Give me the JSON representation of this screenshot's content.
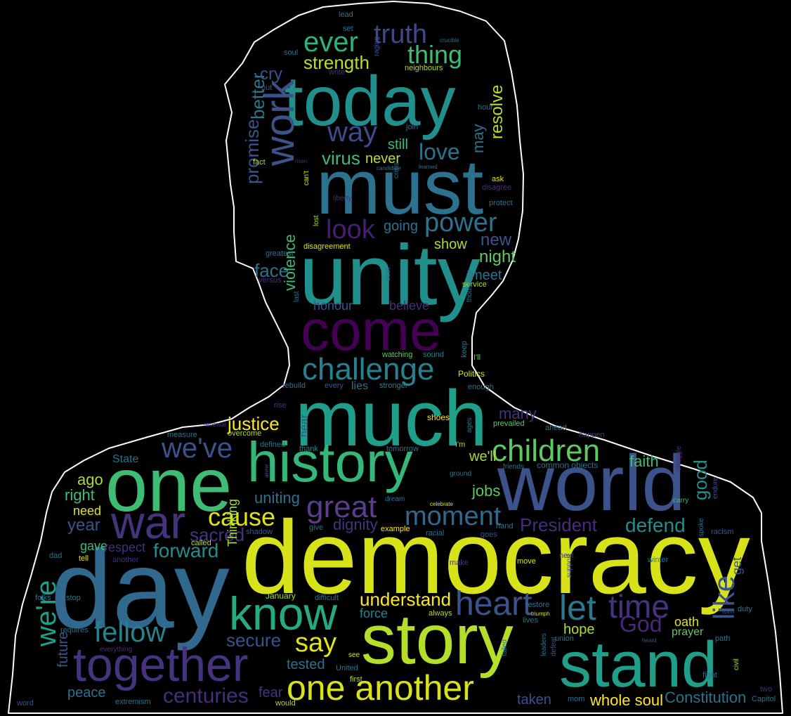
{
  "colors": {
    "background": "#000000",
    "outline": "#ffffff",
    "palette": [
      "#440154",
      "#472c7a",
      "#3b518b",
      "#2c718e",
      "#21908d",
      "#27ad81",
      "#5cc863",
      "#aadc32",
      "#fde725"
    ]
  },
  "words": {
    "democracy": "democracy",
    "day": "day",
    "unity": "unity",
    "must": "must",
    "much": "much",
    "today": "today",
    "world": "world",
    "one": "one",
    "story": "story",
    "stand": "stand",
    "history": "history",
    "come": "come",
    "together": "together",
    "war": "war",
    "know": "know",
    "work": "work",
    "one_another": "one another",
    "challenge": "challenge",
    "children": "children",
    "great": "great",
    "time": "time",
    "heart": "heart",
    "let": "let",
    "like": "like",
    "were": "we're",
    "weve": "we've",
    "fellow": "fellow",
    "moment": "moment",
    "power": "power",
    "look": "look",
    "cause": "cause",
    "way": "way",
    "ever": "ever",
    "truth": "truth",
    "thing": "thing",
    "say": "say",
    "god": "God",
    "centuries": "centuries",
    "love": "love",
    "understand": "understand",
    "strength": "strength",
    "virus": "virus",
    "promise": "promise",
    "better": "better",
    "face": "face",
    "forward": "forward",
    "defend": "defend",
    "president": "President",
    "justice": "justice",
    "secure": "secure",
    "constitution": "Constitution",
    "whole_soul": "whole soul",
    "sacred": "sacred",
    "good": "good",
    "resolve": "resolve",
    "new": "new",
    "night": "night",
    "many": "many",
    "cry": "cry",
    "never": "never",
    "still": "still",
    "going": "going",
    "show": "show",
    "may": "may",
    "violence": "violence",
    "honour": "honour",
    "believe": "believe",
    "meet": "meet",
    "faith": "faith",
    "jobs": "jobs",
    "dignity": "dignity",
    "uniting": "uniting",
    "well": "we'll",
    "year": "year",
    "right": "right",
    "ago": "ago",
    "need": "need",
    "gave": "gave",
    "respect": "respect",
    "future": "future",
    "peace": "peace",
    "tested": "tested",
    "fear": "fear",
    "taken": "taken",
    "hope": "hope",
    "oath": "oath",
    "prayer": "prayer",
    "force": "force",
    "get": "get",
    "state": "State",
    "thinking": "Thinking",
    "lies": "lies",
    "hear": "hear",
    "january": "January",
    "shoes": "shoes",
    "politics": "Politics",
    "ill": "I'll",
    "keep": "keep",
    "enough": "enough",
    "watching": "watching",
    "sound": "sound",
    "stronger": "stronger",
    "every": "every",
    "rebuild": "rebuild",
    "rise": "rise",
    "renewal": "renewal",
    "measure": "measure",
    "overcome": "overcome",
    "defined": "defined",
    "thank": "thank",
    "tomorrow": "tomorrow",
    "im": "I'm",
    "prevailed": "prevailed",
    "ahead": "ahead",
    "happen": "happen",
    "ages": "ages",
    "friends": "friends",
    "common_objects": "common objects",
    "ground": "ground",
    "anew": "anew",
    "dream": "dream",
    "celebrate": "celebrate",
    "struggle": "struggle",
    "carry": "carry",
    "endure": "endure",
    "hand": "hand",
    "goes": "goes",
    "racial": "racial",
    "racism": "racism",
    "example": "example",
    "give": "give",
    "shadow": "shadow",
    "called": "called",
    "dad": "dad",
    "tell": "tell",
    "another": "another",
    "make": "make",
    "move": "move",
    "next": "next",
    "spoke": "spoke",
    "winter": "winter",
    "support": "support",
    "folks": "folks",
    "stop": "stop",
    "difficult": "difficult",
    "always": "always",
    "restore": "restore",
    "triumph": "triumph",
    "turn": "turn",
    "duty": "duty",
    "requires": "requires",
    "everything": "everything",
    "lives": "lives",
    "union": "union",
    "heard": "heard",
    "path": "path",
    "failed": "failed",
    "leaders": "leaders",
    "defeat": "defeat",
    "fight": "fight",
    "civil": "civil",
    "see": "see",
    "united": "United",
    "first": "first",
    "extremism": "extremism",
    "would": "would",
    "word": "word",
    "mom": "mom",
    "two": "two",
    "capitol": "Capitol",
    "lead": "lead",
    "set": "set",
    "soul": "soul",
    "raging": "raging",
    "crucible": "crucible",
    "write": "write",
    "neighbours": "neighbours",
    "put": "put",
    "hour": "hour",
    "join": "join",
    "fact": "fact",
    "risen": "risen",
    "candidate": "candidate",
    "learned": "learned",
    "cant": "can't",
    "crisis": "crisis",
    "ask": "ask",
    "disagree": "disagree",
    "protect": "protect",
    "liberty": "liberty",
    "lost": "lost",
    "disagreement": "disagreement",
    "greatest": "greatest",
    "versus": "versus",
    "best": "best",
    "last": "last",
    "service": "service",
    "thousands": "thousands"
  }
}
